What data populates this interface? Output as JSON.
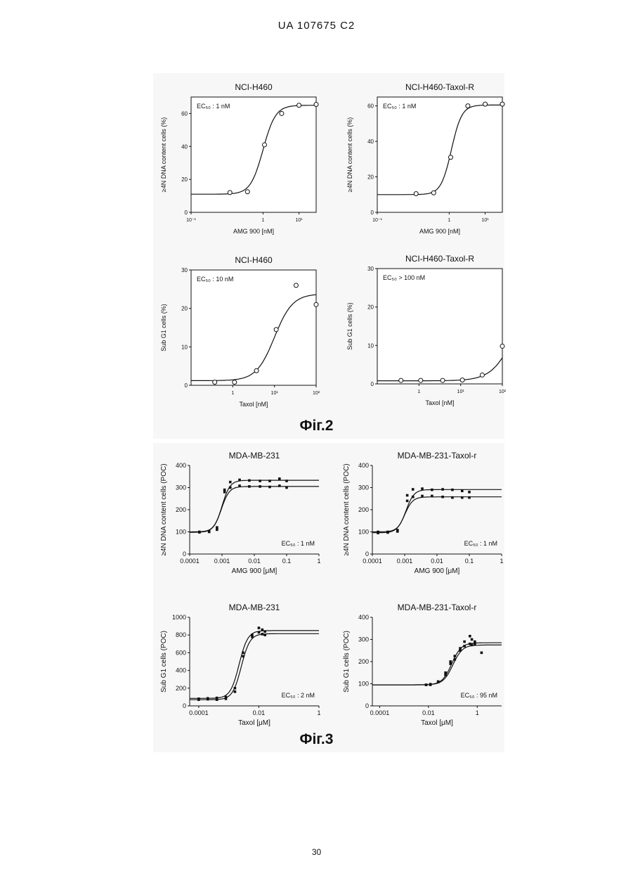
{
  "page": {
    "header": "UA   107675   C2",
    "page_number": "30",
    "fig2_label": "Фіг.2",
    "fig3_label": "Фіг.3"
  },
  "chart_data": [
    {
      "id": "c1",
      "type": "scatter",
      "title": "NCI-H460",
      "xlabel": "AMG 900 [nM]",
      "ylabel": "≥4N DNA content cells (%)",
      "xscale": "log",
      "xlim": [
        0.01,
        30
      ],
      "ylim": [
        0,
        70
      ],
      "xticks": [
        {
          "v": 0.01,
          "label": "10⁻¹"
        },
        {
          "v": 1,
          "label": "1"
        },
        {
          "v": 10,
          "label": "10¹"
        }
      ],
      "yticks": [
        0,
        20,
        40,
        60
      ],
      "annotation": {
        "text": "EC₅₀ : 1 nM",
        "pos": "top-left"
      },
      "marker": "open-circle",
      "series": [
        {
          "x": [
            0.12,
            0.37,
            1.1,
            3.3,
            10,
            30
          ],
          "y": [
            12,
            12.5,
            41,
            60,
            65,
            65.5
          ],
          "fit": {
            "bottom": 11,
            "top": 65,
            "ec50": 1,
            "hill": 2.5
          }
        }
      ]
    },
    {
      "id": "c2",
      "type": "scatter",
      "title": "NCI-H460-Taxol-R",
      "xlabel": "AMG 900 [nM]",
      "ylabel": "≥4N DNA content cells (%)",
      "xscale": "log",
      "xlim": [
        0.01,
        30
      ],
      "ylim": [
        0,
        65
      ],
      "xticks": [
        {
          "v": 0.01,
          "label": "10⁻¹"
        },
        {
          "v": 1,
          "label": "1"
        },
        {
          "v": 10,
          "label": "10¹"
        }
      ],
      "yticks": [
        0,
        20,
        40,
        60
      ],
      "annotation": {
        "text": "EC₅₀ : 1 nM",
        "pos": "top-left"
      },
      "marker": "open-circle",
      "series": [
        {
          "x": [
            0.12,
            0.37,
            1.1,
            3.3,
            10,
            30
          ],
          "y": [
            10.5,
            11,
            31,
            60,
            61,
            61
          ],
          "fit": {
            "bottom": 10,
            "top": 60.5,
            "ec50": 1.15,
            "hill": 3
          }
        }
      ]
    },
    {
      "id": "c3",
      "type": "scatter",
      "title": "NCI-H460",
      "xlabel": "Taxol [nM]",
      "ylabel": "Sub G1 cells (%)",
      "xscale": "log",
      "xlim": [
        0.1,
        100
      ],
      "ylim": [
        0,
        30
      ],
      "xticks": [
        {
          "v": 1,
          "label": "1"
        },
        {
          "v": 10,
          "label": "10¹"
        },
        {
          "v": 100,
          "label": "10²"
        }
      ],
      "yticks": [
        0,
        10,
        20,
        30
      ],
      "annotation": {
        "text": "EC₅₀ : 10 nM",
        "pos": "top-left"
      },
      "marker": "open-circle",
      "series": [
        {
          "x": [
            0.37,
            1.1,
            3.7,
            11,
            33,
            100
          ],
          "y": [
            0.8,
            0.8,
            3.8,
            14.5,
            26,
            21
          ],
          "fit": {
            "bottom": 1.2,
            "top": 23.8,
            "ec50": 10,
            "hill": 2
          }
        }
      ]
    },
    {
      "id": "c4",
      "type": "scatter",
      "title": "NCI-H460-Taxol-R",
      "xlabel": "Taxol [nM]",
      "ylabel": "Sub G1 cells (%)",
      "xscale": "log",
      "xlim": [
        0.1,
        100
      ],
      "ylim": [
        0,
        30
      ],
      "xticks": [
        {
          "v": 1,
          "label": "1"
        },
        {
          "v": 10,
          "label": "10¹"
        },
        {
          "v": 100,
          "label": "10²"
        }
      ],
      "yticks": [
        0,
        10,
        20,
        30
      ],
      "annotation": {
        "text": "EC₅₀ > 100 nM",
        "pos": "top-left"
      },
      "marker": "open-circle",
      "series": [
        {
          "x": [
            0.37,
            1.1,
            3.7,
            11,
            33,
            100
          ],
          "y": [
            0.9,
            0.9,
            0.9,
            1,
            2.3,
            9.8
          ],
          "fit": {
            "bottom": 0.8,
            "top": 25,
            "ec50": 200,
            "hill": 1.6
          }
        }
      ]
    },
    {
      "id": "c5",
      "type": "scatter",
      "title": "MDA-MB-231",
      "xlabel": "AMG 900 [μM]",
      "ylabel": "≥4N DNA content cells (POC)",
      "xscale": "log",
      "xlim": [
        0.0001,
        1
      ],
      "ylim": [
        0,
        400
      ],
      "xticks": [
        {
          "v": 0.0001,
          "label": "0.0001"
        },
        {
          "v": 0.001,
          "label": "0.001"
        },
        {
          "v": 0.01,
          "label": "0.01"
        },
        {
          "v": 0.1,
          "label": "0.1"
        },
        {
          "v": 1,
          "label": "1"
        }
      ],
      "yticks": [
        0,
        100,
        200,
        300,
        400
      ],
      "annotation": {
        "text": "EC₅₀ : 1 nM",
        "pos": "bottom-right"
      },
      "marker": "filled-square",
      "series": [
        {
          "x": [
            0.0002,
            0.0004,
            0.0007,
            0.0012,
            0.0018,
            0.0035,
            0.007,
            0.015,
            0.03,
            0.06,
            0.1
          ],
          "y": [
            100,
            102,
            120,
            290,
            325,
            335,
            332,
            330,
            330,
            340,
            330
          ],
          "fit": {
            "bottom": 100,
            "top": 333,
            "ec50": 0.001,
            "hill": 3.5
          }
        },
        {
          "x": [
            0.0002,
            0.0004,
            0.0007,
            0.0012,
            0.0018,
            0.0035,
            0.007,
            0.015,
            0.03,
            0.06,
            0.1
          ],
          "y": [
            98,
            100,
            110,
            280,
            300,
            308,
            305,
            305,
            303,
            308,
            300
          ],
          "fit": {
            "bottom": 98,
            "top": 305,
            "ec50": 0.00095,
            "hill": 3.5
          }
        }
      ]
    },
    {
      "id": "c6",
      "type": "scatter",
      "title": "MDA-MB-231-Taxol-r",
      "xlabel": "AMG 900 [μM]",
      "ylabel": "≥4N DNA content cells (POC)",
      "xscale": "log",
      "xlim": [
        0.0001,
        1
      ],
      "ylim": [
        0,
        400
      ],
      "xticks": [
        {
          "v": 0.0001,
          "label": "0.0001"
        },
        {
          "v": 0.001,
          "label": "0.001"
        },
        {
          "v": 0.01,
          "label": "0.01"
        },
        {
          "v": 0.1,
          "label": "0.1"
        },
        {
          "v": 1,
          "label": "1"
        }
      ],
      "yticks": [
        0,
        100,
        200,
        300,
        400
      ],
      "annotation": {
        "text": "EC₅₀ : 1 nM",
        "pos": "bottom-right"
      },
      "marker": "filled-square",
      "series": [
        {
          "x": [
            0.00015,
            0.0003,
            0.0006,
            0.0012,
            0.0018,
            0.0035,
            0.007,
            0.015,
            0.03,
            0.06,
            0.1
          ],
          "y": [
            100,
            100,
            108,
            265,
            292,
            295,
            290,
            292,
            290,
            285,
            280
          ],
          "fit": {
            "bottom": 100,
            "top": 291,
            "ec50": 0.0011,
            "hill": 3.5
          }
        },
        {
          "x": [
            0.00015,
            0.0003,
            0.0006,
            0.0012,
            0.0018,
            0.0035,
            0.007,
            0.015,
            0.03,
            0.06,
            0.1
          ],
          "y": [
            95,
            97,
            102,
            240,
            258,
            262,
            262,
            258,
            255,
            255,
            255
          ],
          "fit": {
            "bottom": 96,
            "top": 258,
            "ec50": 0.001,
            "hill": 3.5
          }
        }
      ]
    },
    {
      "id": "c7",
      "type": "scatter",
      "title": "MDA-MB-231",
      "xlabel": "Taxol [μM]",
      "ylabel": "Sub G1 cells (POC)",
      "xscale": "log",
      "xlim": [
        5e-05,
        1
      ],
      "ylim": [
        0,
        1000
      ],
      "xticks": [
        {
          "v": 0.0001,
          "label": "0.0001"
        },
        {
          "v": 0.01,
          "label": "0.01"
        },
        {
          "v": 1,
          "label": "1"
        }
      ],
      "yticks": [
        0,
        200,
        400,
        600,
        800,
        1000
      ],
      "annotation": {
        "text": "EC₅₀ : 2 nM",
        "pos": "bottom-right"
      },
      "marker": "filled-square",
      "series": [
        {
          "x": [
            0.0001,
            0.0002,
            0.0004,
            0.0008,
            0.0016,
            0.003,
            0.006,
            0.01,
            0.013,
            0.016
          ],
          "y": [
            80,
            85,
            90,
            100,
            200,
            600,
            800,
            880,
            860,
            840
          ],
          "fit": {
            "bottom": 85,
            "top": 850,
            "ec50": 0.0022,
            "hill": 3
          }
        },
        {
          "x": [
            0.0001,
            0.0002,
            0.0004,
            0.0008,
            0.0016,
            0.003,
            0.006,
            0.01,
            0.013,
            0.016
          ],
          "y": [
            70,
            75,
            70,
            80,
            160,
            560,
            780,
            830,
            810,
            800
          ],
          "fit": {
            "bottom": 70,
            "top": 815,
            "ec50": 0.0026,
            "hill": 3
          }
        }
      ]
    },
    {
      "id": "c8",
      "type": "scatter",
      "title": "MDA-MB-231-Taxol-r",
      "xlabel": "Taxol [μM]",
      "ylabel": "Sub G1 cells (POC)",
      "xscale": "log",
      "xlim": [
        5e-05,
        10
      ],
      "ylim": [
        0,
        400
      ],
      "xticks": [
        {
          "v": 0.0001,
          "label": "0.0001"
        },
        {
          "v": 0.01,
          "label": "0.01"
        },
        {
          "v": 1,
          "label": "1"
        }
      ],
      "yticks": [
        0,
        100,
        200,
        300,
        400
      ],
      "annotation": {
        "text": "EC₅₀ : 95 nM",
        "pos": "bottom-right"
      },
      "marker": "filled-square",
      "series": [
        {
          "x": [
            0.008,
            0.012,
            0.025,
            0.05,
            0.08,
            0.12,
            0.2,
            0.3,
            0.5,
            0.6,
            0.8
          ],
          "y": [
            95,
            98,
            110,
            150,
            200,
            225,
            260,
            290,
            315,
            300,
            290
          ],
          "fit": {
            "bottom": 95,
            "top": 285,
            "ec50": 0.09,
            "hill": 2.2
          }
        },
        {
          "x": [
            0.008,
            0.012,
            0.025,
            0.05,
            0.08,
            0.12,
            0.2,
            0.3,
            0.5,
            0.6,
            0.8,
            1.5
          ],
          "y": [
            95,
            95,
            108,
            140,
            190,
            210,
            250,
            270,
            280,
            275,
            280,
            240
          ],
          "fit": {
            "bottom": 95,
            "top": 275,
            "ec50": 0.1,
            "hill": 2.2
          }
        }
      ]
    }
  ]
}
